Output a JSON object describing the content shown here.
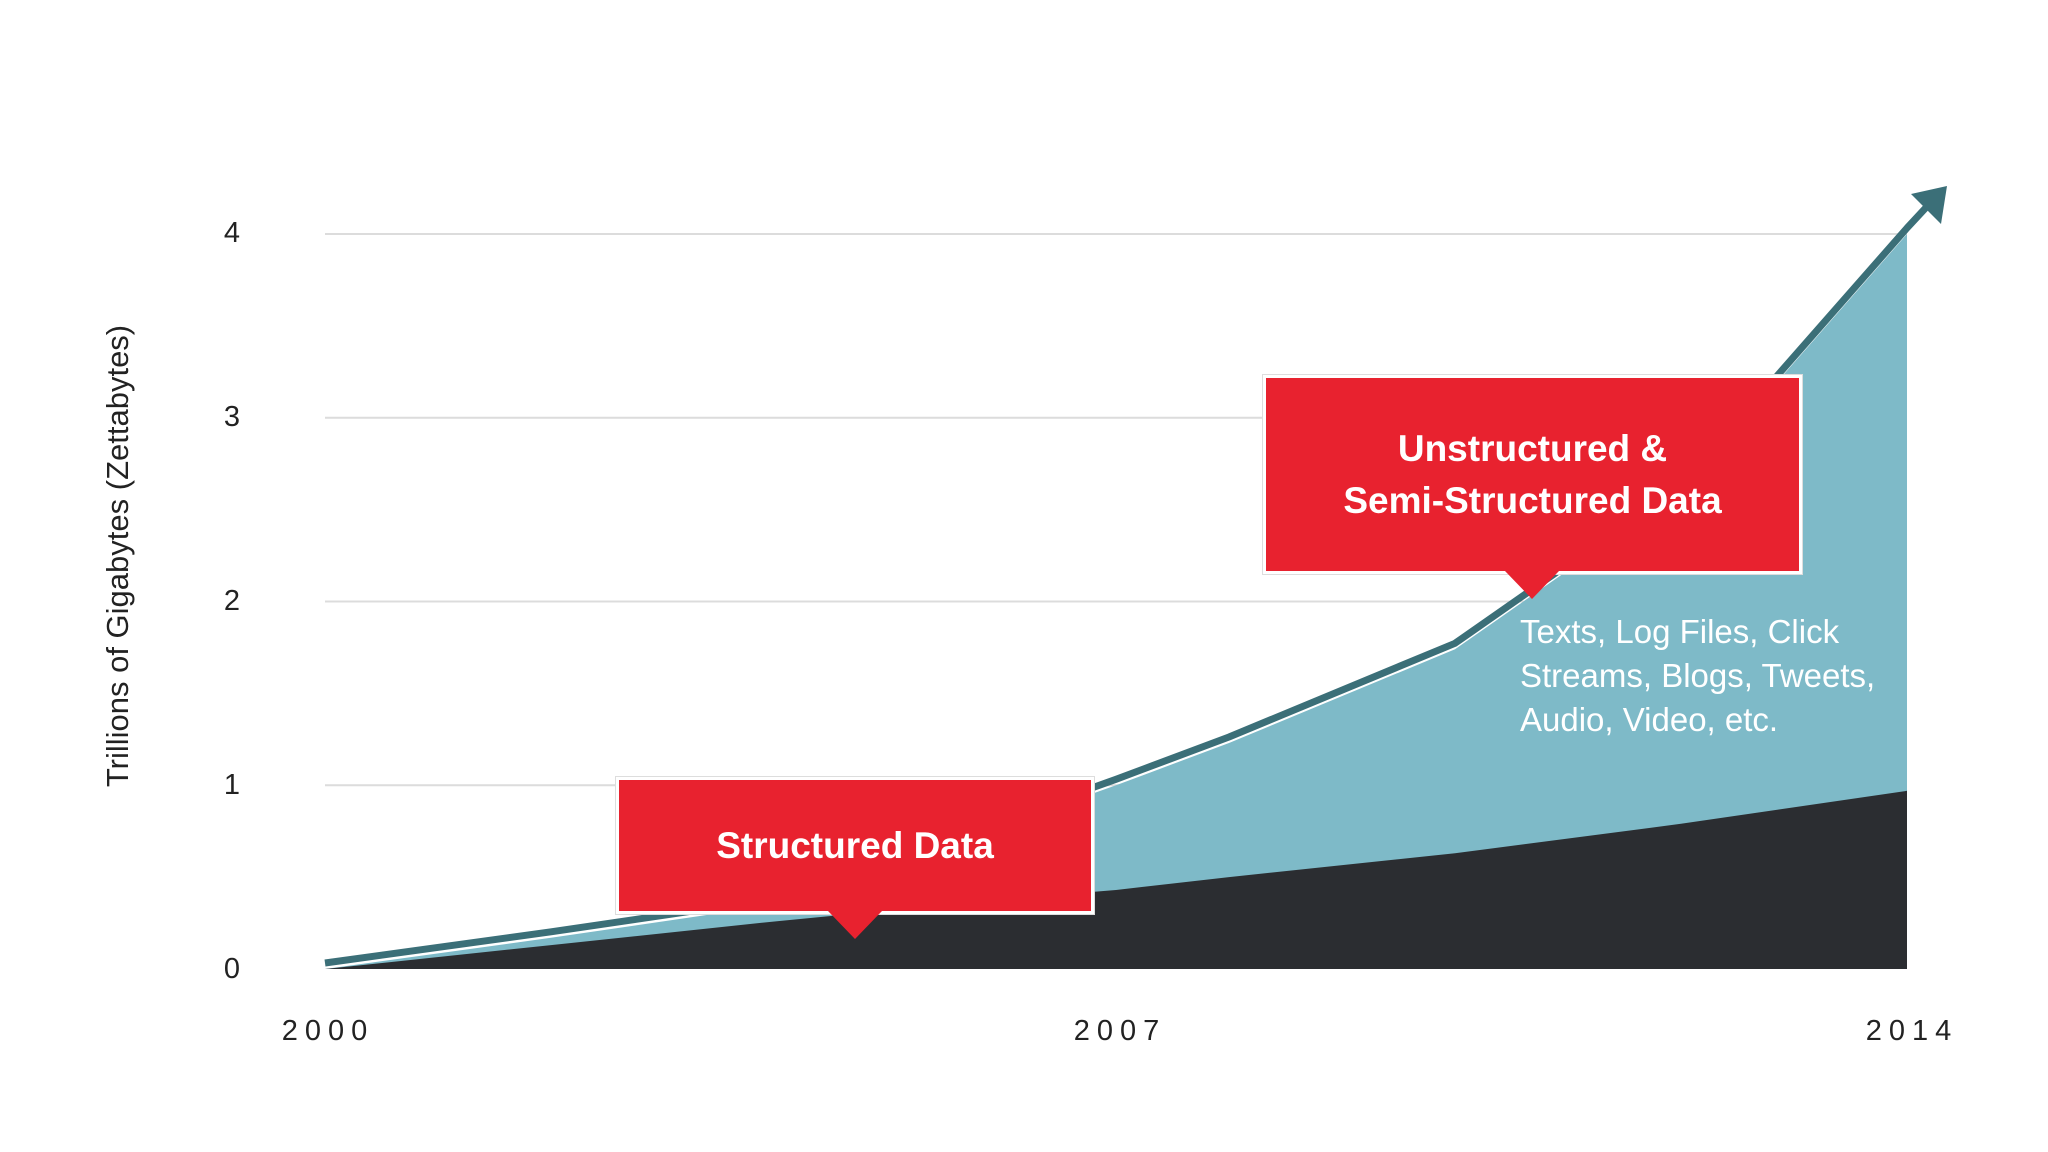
{
  "chart_data": {
    "type": "area",
    "x": [
      2000,
      2002,
      2004,
      2006,
      2007,
      2008,
      2010,
      2012,
      2014
    ],
    "xticks": [
      "2000",
      "2007",
      "2014"
    ],
    "ylabel": "Trillions of Gigabytes (Zettabytes)",
    "yticks": [
      "0",
      "1",
      "2",
      "3",
      "4"
    ],
    "ylim": [
      0,
      4
    ],
    "xlim": [
      2000,
      2014
    ],
    "grid": true,
    "series": [
      {
        "name": "Structured Data",
        "color": "#2b2d31",
        "values": [
          0,
          0.13,
          0.26,
          0.38,
          0.43,
          0.5,
          0.63,
          0.79,
          0.97
        ]
      },
      {
        "name": "Unstructured & Semi-Structured Data",
        "color": "#7ebac8",
        "values": [
          0,
          0.17,
          0.35,
          0.78,
          1.0,
          1.23,
          1.74,
          2.6,
          4.0
        ]
      }
    ],
    "trend_arrow_color": "#3b6f78",
    "annotations": {
      "structured": "Structured Data",
      "unstructured_line1": "Unstructured &",
      "unstructured_line2": "Semi-Structured Data",
      "examples_line1": "Texts, Log Files, Click",
      "examples_line2": "Streams, Blogs, Tweets,",
      "examples_line3": "Audio, Video, etc."
    }
  }
}
